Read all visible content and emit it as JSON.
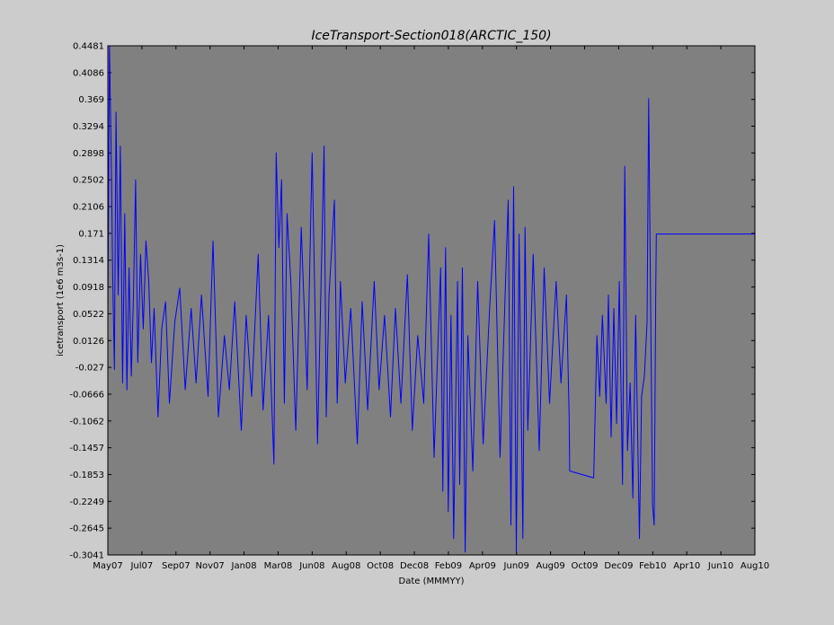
{
  "chart_data": {
    "type": "line",
    "title": "IceTransport-Section018(ARCTIC_150)",
    "xlabel": "Date (MMMYY)",
    "ylabel": "icetransport (1e6 m3s-1)",
    "x_tick_labels": [
      "May07",
      "Jul07",
      "Sep07",
      "Nov07",
      "Jan08",
      "Mar08",
      "Jun08",
      "Aug08",
      "Oct08",
      "Dec08",
      "Feb09",
      "Apr09",
      "Jun09",
      "Aug09",
      "Oct09",
      "Dec09",
      "Feb10",
      "Apr10",
      "Jun10",
      "Aug10"
    ],
    "y_tick_labels": [
      "-0.3041",
      "-0.2645",
      "-0.2249",
      "-0.1853",
      "-0.1457",
      "-0.1062",
      "-0.0666",
      "-0.027",
      "0.0126",
      "0.0522",
      "0.0918",
      "0.1314",
      "0.171",
      "0.2106",
      "0.2502",
      "0.2898",
      "0.3294",
      "0.369",
      "0.4086",
      "0.4481"
    ],
    "ylim": [
      -0.3041,
      0.4481
    ],
    "xlim": [
      "2007-05-01",
      "2010-08-01"
    ],
    "grid": false,
    "plot_background": "#808080",
    "figure_background": "#cccccc",
    "series": [
      {
        "color": "#0000ff",
        "x": [
          "2007-05-01",
          "2007-05-04",
          "2007-05-07",
          "2007-05-10",
          "2007-05-13",
          "2007-05-16",
          "2007-05-20",
          "2007-05-24",
          "2007-05-28",
          "2007-06-01",
          "2007-06-05",
          "2007-06-09",
          "2007-06-13",
          "2007-06-17",
          "2007-06-21",
          "2007-06-25",
          "2007-06-30",
          "2007-07-05",
          "2007-07-10",
          "2007-07-15",
          "2007-07-20",
          "2007-07-25",
          "2007-08-01",
          "2007-08-08",
          "2007-08-15",
          "2007-08-22",
          "2007-09-01",
          "2007-09-10",
          "2007-09-20",
          "2007-10-01",
          "2007-10-10",
          "2007-10-20",
          "2007-11-01",
          "2007-11-10",
          "2007-11-20",
          "2007-12-01",
          "2007-12-10",
          "2007-12-20",
          "2008-01-01",
          "2008-01-10",
          "2008-01-20",
          "2008-02-01",
          "2008-02-10",
          "2008-02-20",
          "2008-03-01",
          "2008-03-05",
          "2008-03-10",
          "2008-03-15",
          "2008-03-20",
          "2008-03-25",
          "2008-04-01",
          "2008-04-10",
          "2008-04-20",
          "2008-05-01",
          "2008-05-10",
          "2008-05-20",
          "2008-06-01",
          "2008-06-05",
          "2008-06-10",
          "2008-06-20",
          "2008-06-25",
          "2008-07-01",
          "2008-07-10",
          "2008-07-20",
          "2008-08-01",
          "2008-08-10",
          "2008-08-20",
          "2008-09-01",
          "2008-09-10",
          "2008-09-20",
          "2008-10-01",
          "2008-10-10",
          "2008-10-20",
          "2008-11-01",
          "2008-11-10",
          "2008-11-20",
          "2008-12-01",
          "2008-12-10",
          "2008-12-20",
          "2009-01-01",
          "2009-01-05",
          "2009-01-10",
          "2009-01-15",
          "2009-01-20",
          "2009-01-25",
          "2009-02-01",
          "2009-02-05",
          "2009-02-10",
          "2009-02-15",
          "2009-02-20",
          "2009-03-01",
          "2009-03-10",
          "2009-03-20",
          "2009-04-01",
          "2009-04-10",
          "2009-04-20",
          "2009-05-01",
          "2009-05-05",
          "2009-05-10",
          "2009-05-15",
          "2009-05-20",
          "2009-05-25",
          "2009-06-01",
          "2009-06-05",
          "2009-06-10",
          "2009-06-20",
          "2009-07-01",
          "2009-07-10",
          "2009-07-20",
          "2009-08-01",
          "2009-08-10",
          "2009-08-20",
          "2009-08-25",
          "2009-08-26",
          "2009-10-08",
          "2009-10-09",
          "2009-10-15",
          "2009-10-20",
          "2009-10-25",
          "2009-11-01",
          "2009-11-05",
          "2009-11-10",
          "2009-11-15",
          "2009-11-20",
          "2009-11-25",
          "2009-12-01",
          "2009-12-05",
          "2009-12-10",
          "2009-12-15",
          "2009-12-20",
          "2009-12-25",
          "2010-01-01",
          "2010-01-05",
          "2010-01-10",
          "2010-01-15",
          "2010-01-18",
          "2010-01-20",
          "2010-01-25",
          "2010-01-28",
          "2010-01-31",
          "2010-02-01",
          "2010-08-01"
        ],
        "y": [
          0.05,
          0.4481,
          0.3,
          0.1,
          -0.03,
          0.35,
          0.08,
          0.3,
          -0.05,
          0.2,
          -0.06,
          0.12,
          -0.04,
          0.08,
          0.25,
          -0.02,
          0.14,
          0.03,
          0.16,
          0.1,
          -0.02,
          0.06,
          -0.1,
          0.03,
          0.07,
          -0.08,
          0.04,
          0.09,
          -0.06,
          0.06,
          -0.05,
          0.08,
          -0.07,
          0.16,
          -0.1,
          0.02,
          -0.06,
          0.07,
          -0.12,
          0.05,
          -0.07,
          0.14,
          -0.09,
          0.05,
          -0.17,
          0.29,
          0.15,
          0.25,
          -0.08,
          0.2,
          0.1,
          -0.12,
          0.18,
          -0.06,
          0.29,
          -0.14,
          0.3,
          -0.1,
          0.08,
          0.22,
          -0.08,
          0.1,
          -0.05,
          0.06,
          -0.14,
          0.07,
          -0.09,
          0.1,
          -0.06,
          0.05,
          -0.1,
          0.06,
          -0.08,
          0.11,
          -0.12,
          0.02,
          -0.08,
          0.17,
          -0.16,
          0.12,
          -0.21,
          0.15,
          -0.24,
          0.05,
          -0.28,
          0.1,
          -0.2,
          0.12,
          -0.3,
          0.02,
          -0.18,
          0.1,
          -0.14,
          0.06,
          0.19,
          -0.16,
          0.12,
          0.22,
          -0.26,
          0.24,
          -0.3,
          0.17,
          -0.28,
          0.18,
          -0.12,
          0.14,
          -0.15,
          0.12,
          -0.08,
          0.1,
          -0.05,
          0.08,
          -0.1,
          -0.18,
          -0.19,
          -0.19,
          0.02,
          -0.07,
          0.05,
          -0.08,
          0.08,
          -0.13,
          0.06,
          -0.11,
          0.1,
          -0.2,
          0.27,
          -0.15,
          -0.05,
          -0.22,
          0.05,
          -0.28,
          -0.07,
          -0.04,
          0.04,
          0.37,
          0.2,
          -0.23,
          -0.26,
          0.09,
          0.17,
          0.17
        ]
      }
    ]
  }
}
